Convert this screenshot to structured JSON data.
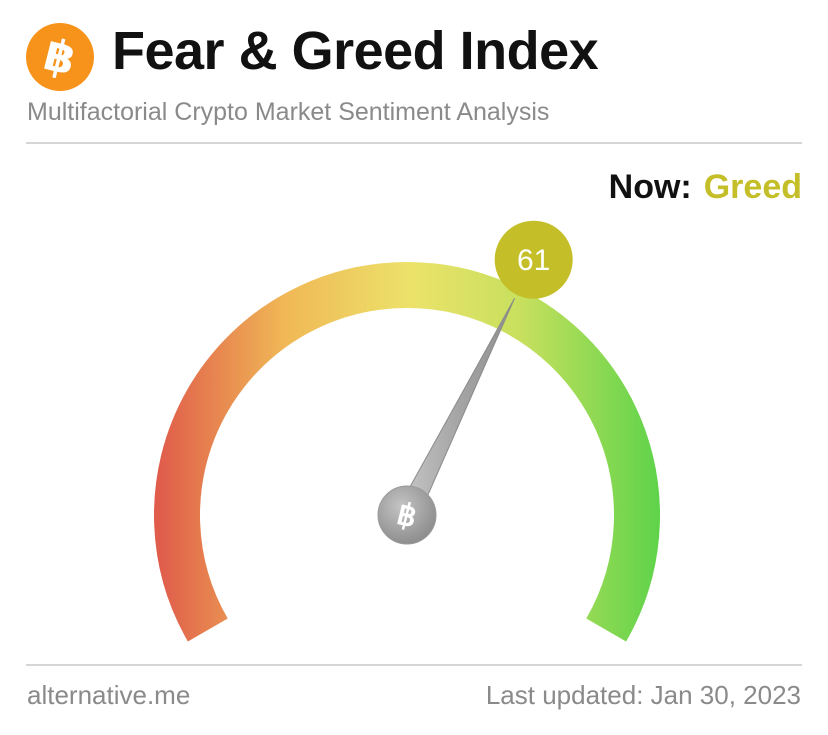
{
  "header": {
    "logo_symbol": "฿",
    "title": "Fear & Greed Index",
    "subtitle": "Multifactorial Crypto Market Sentiment Analysis"
  },
  "status": {
    "now_label": "Now:",
    "now_value": "Greed",
    "now_color": "#c4bf29"
  },
  "gauge": {
    "value": 61,
    "value_label": "61",
    "min": 0,
    "max": 100,
    "badge_color": "#c4bf29",
    "center_symbol": "฿",
    "colors": {
      "fear": "#e05d4b",
      "mid_low": "#f0b856",
      "neutral": "#ece26a",
      "mid_high": "#c8e05e",
      "greed": "#5ed34a"
    }
  },
  "footer": {
    "source": "alternative.me",
    "updated": "Last updated: Jan 30, 2023"
  }
}
